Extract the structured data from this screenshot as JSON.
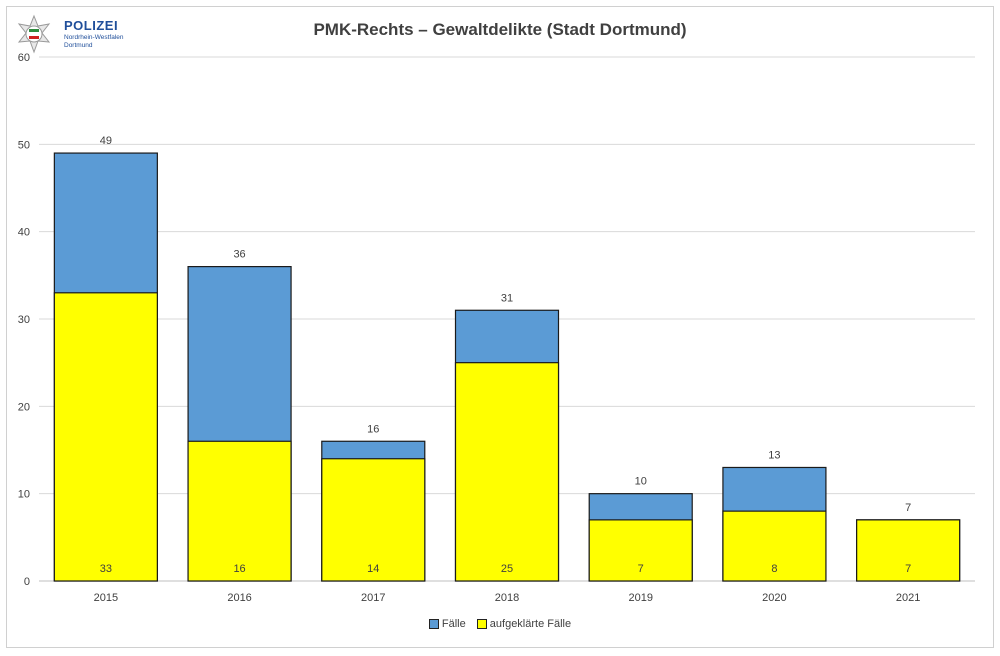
{
  "logo": {
    "brand": "POLIZEI",
    "line1": "Nordrhein-Westfalen",
    "line2": "Dortmund"
  },
  "chart_data": {
    "type": "bar",
    "stacked": false,
    "overlay": true,
    "title": "PMK-Rechts – Gewaltdelikte (Stadt Dortmund)",
    "categories": [
      "2015",
      "2016",
      "2017",
      "2018",
      "2019",
      "2020",
      "2021"
    ],
    "series": [
      {
        "name": "Fälle",
        "color": "#5b9bd5",
        "values": [
          49,
          36,
          16,
          31,
          10,
          13,
          7
        ]
      },
      {
        "name": "aufgeklärte Fälle",
        "color": "#ffff00",
        "values": [
          33,
          16,
          14,
          25,
          7,
          8,
          7
        ]
      }
    ],
    "ylim": [
      0,
      60
    ],
    "yticks": [
      0,
      10,
      20,
      30,
      40,
      50,
      60
    ],
    "grid": true,
    "legend": "bottom"
  }
}
